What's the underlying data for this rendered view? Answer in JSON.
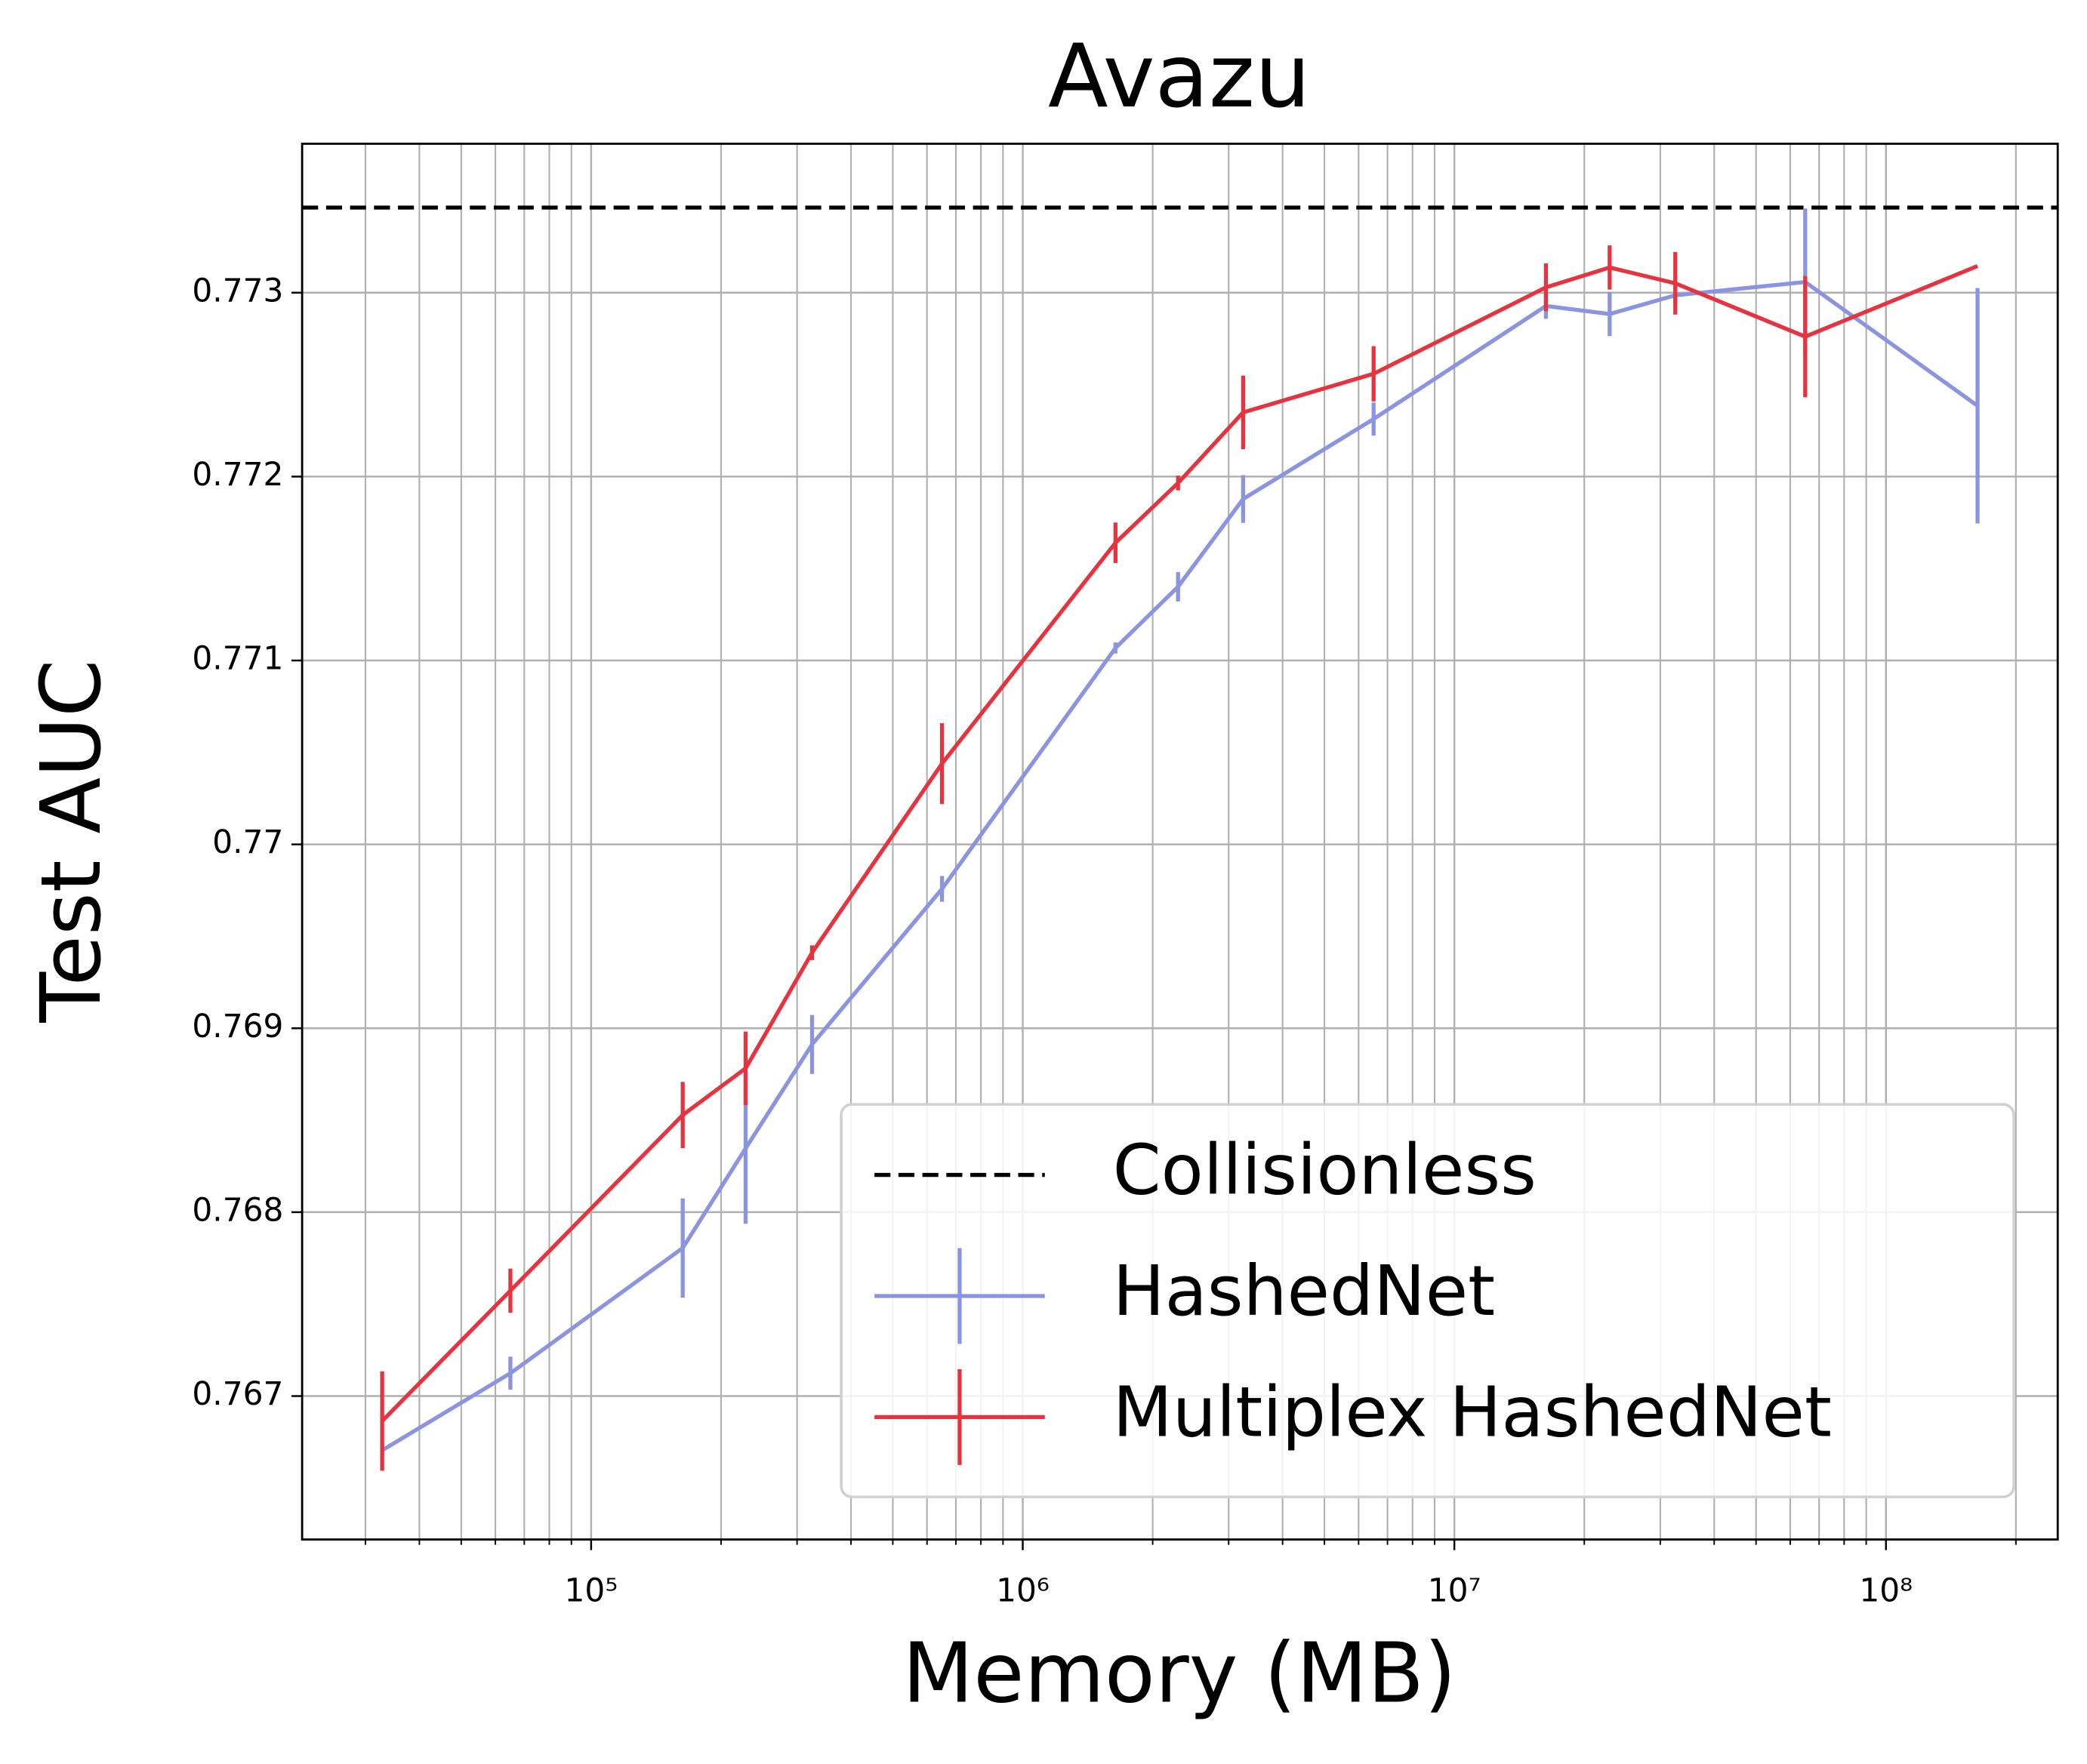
{
  "chart_data": {
    "type": "line",
    "title": "Avazu",
    "x_label": "Memory (MB)",
    "y_label": "Test AUC",
    "xscale": "log",
    "xlim": [
      21400,
      250000000
    ],
    "ylim": [
      0.76622,
      0.77381
    ],
    "xticks": [
      {
        "value": 100000,
        "label": "10⁵"
      },
      {
        "value": 1000000,
        "label": "10⁶"
      },
      {
        "value": 10000000,
        "label": "10⁷"
      },
      {
        "value": 100000000,
        "label": "10⁸"
      }
    ],
    "xminor_ticks": [
      30000,
      40000,
      50000,
      60000,
      70000,
      80000,
      90000,
      200000,
      300000,
      400000,
      500000,
      600000,
      700000,
      800000,
      900000,
      2000000,
      3000000,
      4000000,
      5000000,
      6000000,
      7000000,
      8000000,
      9000000,
      20000000,
      30000000,
      40000000,
      50000000,
      60000000,
      70000000,
      80000000,
      90000000,
      200000000
    ],
    "yticks": [
      0.767,
      0.768,
      0.769,
      0.77,
      0.771,
      0.772,
      0.773
    ],
    "grid": true,
    "legend": "lower right",
    "x": [
      32800,
      65000,
      163000,
      228000,
      325000,
      650000,
      1640000,
      2290000,
      3240000,
      6500000,
      16300000,
      22900000,
      32500000,
      65000000,
      163000000
    ],
    "reference_lines": [
      {
        "name": "Collisionless",
        "value": 0.773463,
        "color": "#000000",
        "style": "dashed"
      }
    ],
    "series": [
      {
        "name": "HashedNet",
        "color": "#8a94e0",
        "values": [
          0.766705,
          0.767124,
          0.767805,
          0.768347,
          0.768912,
          0.769758,
          0.771068,
          0.771401,
          0.771878,
          0.772313,
          0.772928,
          0.772884,
          0.772986,
          0.773058,
          0.772385
        ],
        "errors": [
          3e-05,
          9e-05,
          0.00027,
          0.00041,
          0.00016,
          7e-05,
          3e-05,
          8e-05,
          0.00013,
          9e-05,
          7e-05,
          0.00012,
          5e-05,
          0.0004,
          0.00064
        ]
      },
      {
        "name": "Multiplex HashedNet",
        "color": "#e63340",
        "values": [
          0.766864,
          0.767573,
          0.768528,
          0.768782,
          0.769411,
          0.770439,
          0.77164,
          0.771965,
          0.772349,
          0.772559,
          0.773029,
          0.773137,
          0.773051,
          0.772761,
          0.773145
        ],
        "errors": [
          0.00027,
          0.00012,
          0.00018,
          0.0002,
          4e-05,
          0.00022,
          0.00011,
          4e-05,
          0.0002,
          0.00015,
          0.00013,
          0.00012,
          0.00017,
          0.00033,
          0
        ]
      }
    ]
  }
}
